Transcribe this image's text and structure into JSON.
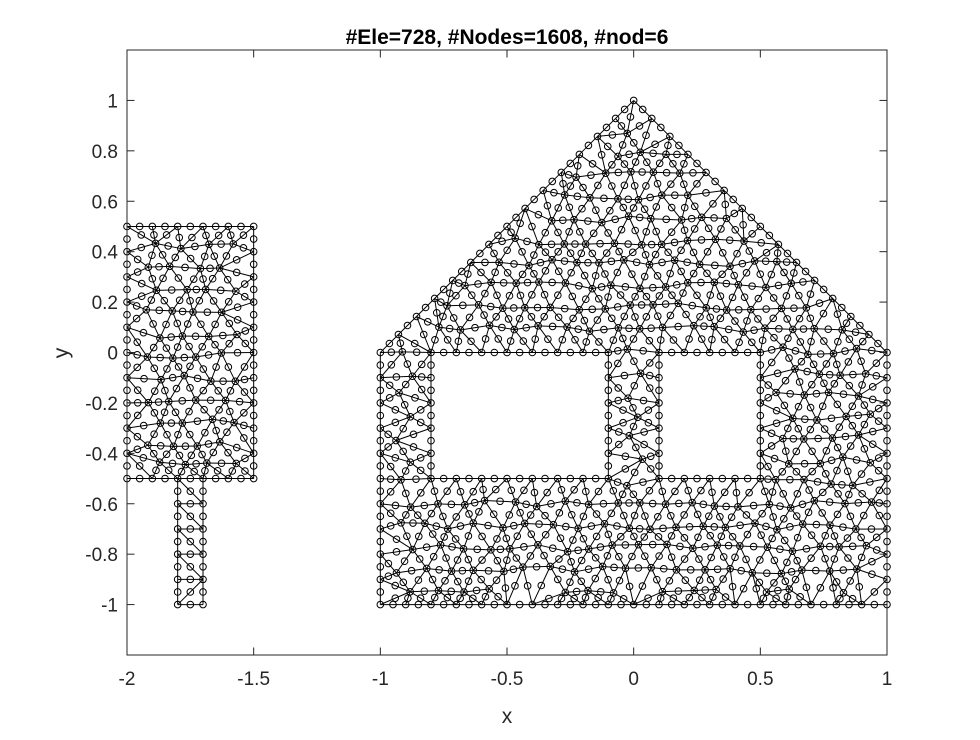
{
  "chart_data": {
    "type": "scatter",
    "title": "#Ele=728, #Nodes=1608, #nod=6",
    "xlabel": "x",
    "ylabel": "y",
    "xlim": [
      -2,
      1
    ],
    "ylim": [
      -1.2,
      1.2
    ],
    "xticks": [
      -2,
      -1.5,
      -1,
      -0.5,
      0,
      0.5,
      1
    ],
    "xtick_labels": [
      "-2",
      "-1.5",
      "-1",
      "-0.5",
      "0",
      "0.5",
      "1"
    ],
    "yticks": [
      -1,
      -0.8,
      -0.6,
      -0.4,
      -0.2,
      0,
      0.2,
      0.4,
      0.6,
      0.8,
      1
    ],
    "ytick_labels": [
      "-1",
      "-0.8",
      "-0.6",
      "-0.4",
      "-0.2",
      "0",
      "0.2",
      "0.4",
      "0.6",
      "0.8",
      "1"
    ],
    "grid": false,
    "box": true,
    "line_color": "#000000",
    "marker": "circle-open",
    "regions": [
      {
        "outline": [
          [
            -2,
            -0.5
          ],
          [
            -1.5,
            -0.5
          ],
          [
            -1.5,
            0.5
          ],
          [
            -2,
            0.5
          ]
        ]
      },
      {
        "outline": [
          [
            -1.8,
            -1
          ],
          [
            -1.7,
            -1
          ],
          [
            -1.7,
            -0.5
          ],
          [
            -1.8,
            -0.5
          ]
        ]
      },
      {
        "outline": [
          [
            -1,
            -1
          ],
          [
            1,
            -1
          ],
          [
            1,
            0
          ],
          [
            0,
            1
          ],
          [
            -1,
            0
          ]
        ],
        "holes": [
          [
            [
              -0.8,
              -0.5
            ],
            [
              -0.1,
              -0.5
            ],
            [
              -0.1,
              0
            ],
            [
              -0.8,
              0
            ]
          ],
          [
            [
              0.1,
              -0.5
            ],
            [
              0.5,
              -0.5
            ],
            [
              0.5,
              0
            ],
            [
              0.1,
              0
            ]
          ]
        ]
      }
    ]
  }
}
